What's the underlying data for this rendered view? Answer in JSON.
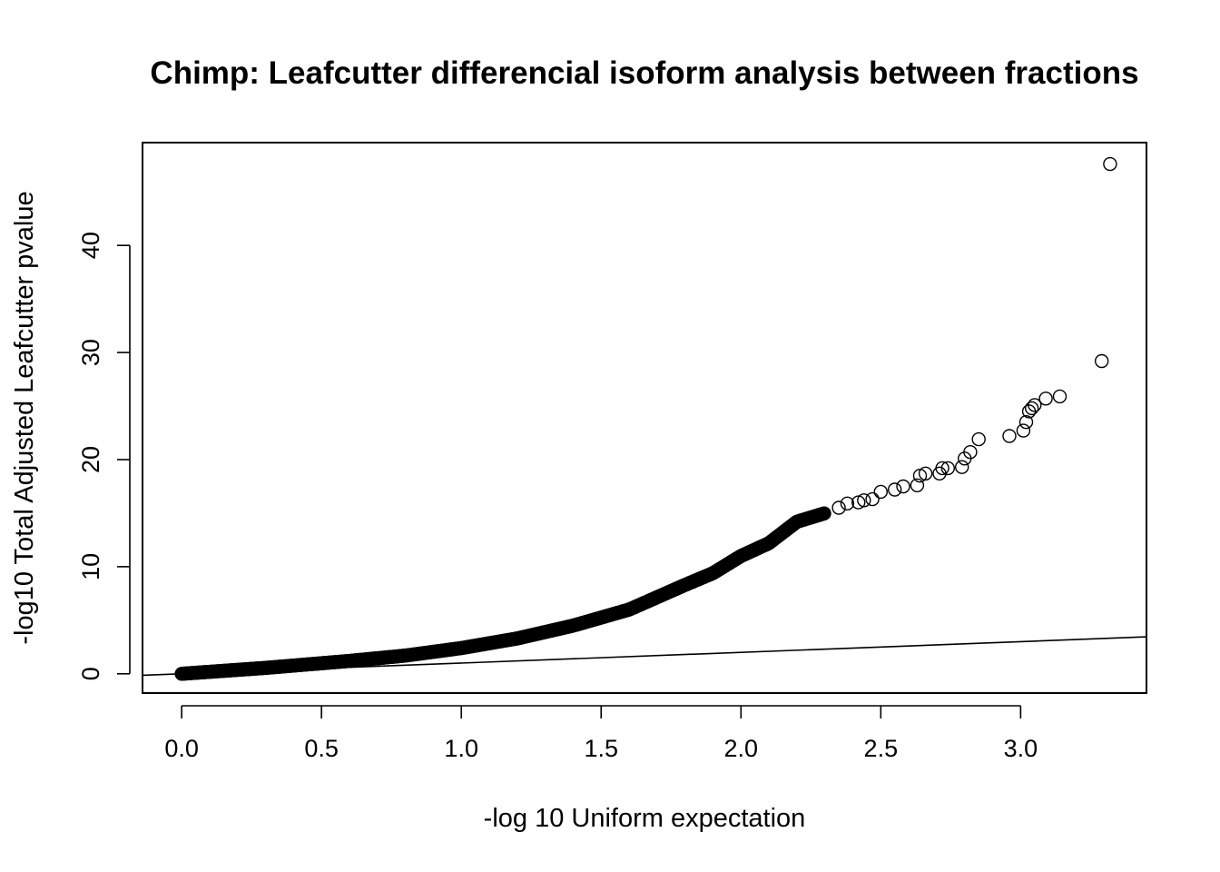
{
  "chart_data": {
    "type": "scatter",
    "title": "Chimp: Leafcutter differencial isoform analysis between fractions",
    "xlabel": "-log 10 Uniform expectation",
    "ylabel": "-log10 Total Adjusted Leafcutter pvalue",
    "xlim": [
      -0.14,
      3.45
    ],
    "ylim": [
      -1.8,
      49.6
    ],
    "x_ticks": [
      "0.0",
      "0.5",
      "1.0",
      "1.5",
      "2.0",
      "2.5",
      "3.0"
    ],
    "y_ticks": [
      "0",
      "10",
      "20",
      "30",
      "40"
    ],
    "grid": false,
    "marker": "open-circle",
    "reference_line": {
      "type": "identity",
      "slope": 1,
      "intercept": 0
    },
    "curve_anchors": [
      [
        0.0,
        0.0
      ],
      [
        0.3,
        0.55
      ],
      [
        0.6,
        1.2
      ],
      [
        0.8,
        1.7
      ],
      [
        1.0,
        2.4
      ],
      [
        1.2,
        3.3
      ],
      [
        1.4,
        4.5
      ],
      [
        1.6,
        6.0
      ],
      [
        1.8,
        8.3
      ],
      [
        1.9,
        9.4
      ],
      [
        2.0,
        11.0
      ],
      [
        2.1,
        12.2
      ],
      [
        2.2,
        14.2
      ],
      [
        2.3,
        15.0
      ]
    ],
    "curve_step": 0.0032,
    "points": [
      [
        2.35,
        15.5
      ],
      [
        2.38,
        15.9
      ],
      [
        2.42,
        16.0
      ],
      [
        2.44,
        16.2
      ],
      [
        2.47,
        16.3
      ],
      [
        2.5,
        17.0
      ],
      [
        2.55,
        17.2
      ],
      [
        2.58,
        17.5
      ],
      [
        2.63,
        17.6
      ],
      [
        2.64,
        18.5
      ],
      [
        2.66,
        18.7
      ],
      [
        2.71,
        18.7
      ],
      [
        2.72,
        19.2
      ],
      [
        2.74,
        19.2
      ],
      [
        2.79,
        19.3
      ],
      [
        2.8,
        20.1
      ],
      [
        2.82,
        20.7
      ],
      [
        2.85,
        21.9
      ],
      [
        2.96,
        22.2
      ],
      [
        3.01,
        22.7
      ],
      [
        3.02,
        23.5
      ],
      [
        3.03,
        24.5
      ],
      [
        3.04,
        24.8
      ],
      [
        3.05,
        25.1
      ],
      [
        3.09,
        25.7
      ],
      [
        3.14,
        25.9
      ],
      [
        3.29,
        29.2
      ],
      [
        3.32,
        47.6
      ]
    ]
  }
}
